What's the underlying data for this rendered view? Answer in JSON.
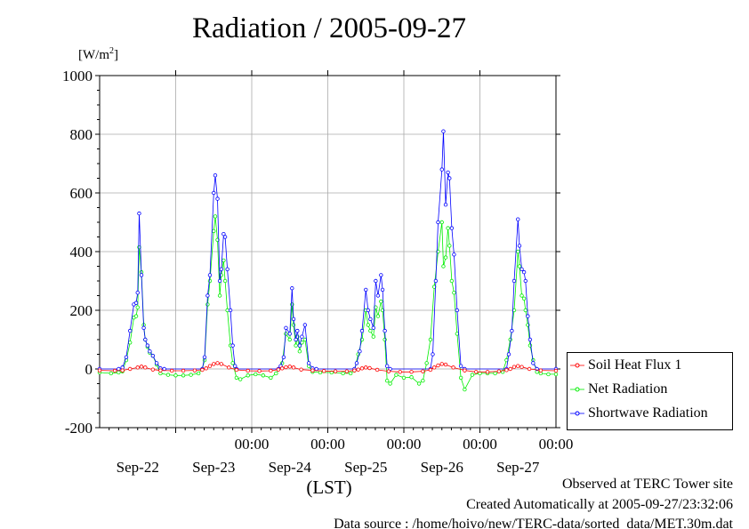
{
  "header": {
    "title": "Radiation / 2005-09-27"
  },
  "y_unit": {
    "base": "[W/m",
    "sup": "2",
    "close": "]"
  },
  "x_axis_label": "(LST)",
  "footer": {
    "line1": "Observed at TERC Tower site",
    "line2": "Created Automatically at 2005-09-27/23:32:06",
    "line3": "Data source : /home/hoivo/new/TERC-data/sorted_data/MET.30m.dat"
  },
  "colors": {
    "soil": "#ff0000",
    "net": "#00ee00",
    "shortwave": "#0000ff",
    "grid": "#aaaaaa"
  },
  "chart_data": {
    "type": "line",
    "title": "Radiation / 2005-09-27",
    "ylabel": "[W/m2]",
    "xlabel": "(LST)",
    "ylim": [
      -200,
      1000
    ],
    "xlim": [
      -0.5,
      5.5
    ],
    "grid": true,
    "legend_position": "right",
    "y_ticks": [
      "-200",
      "0",
      "200",
      "400",
      "600",
      "800",
      "1000"
    ],
    "x_ticks": [
      {
        "x": 0,
        "time": "",
        "date": "Sep-22"
      },
      {
        "x": 1,
        "time": "00:00",
        "date": "Sep-23"
      },
      {
        "x": 2,
        "time": "00:00",
        "date": "Sep-24"
      },
      {
        "x": 3,
        "time": "00:00",
        "date": "Sep-25"
      },
      {
        "x": 4,
        "time": "00:00",
        "date": "Sep-26"
      },
      {
        "x": 5,
        "time": "00:00",
        "date": "Sep-27"
      }
    ],
    "series": [
      {
        "name": "Soil Heat Flux 1",
        "points": [
          [
            -0.5,
            -5
          ],
          [
            -0.3,
            -6
          ],
          [
            -0.2,
            -5
          ],
          [
            -0.1,
            0
          ],
          [
            0.0,
            5
          ],
          [
            0.05,
            8
          ],
          [
            0.1,
            5
          ],
          [
            0.2,
            -2
          ],
          [
            0.3,
            -5
          ],
          [
            0.45,
            -6
          ],
          [
            0.6,
            -6
          ],
          [
            0.75,
            -5
          ],
          [
            0.85,
            -3
          ],
          [
            0.9,
            2
          ],
          [
            0.95,
            10
          ],
          [
            1.0,
            17
          ],
          [
            1.05,
            20
          ],
          [
            1.1,
            17
          ],
          [
            1.2,
            5
          ],
          [
            1.3,
            -3
          ],
          [
            1.45,
            -6
          ],
          [
            1.6,
            -7
          ],
          [
            1.75,
            -6
          ],
          [
            1.85,
            -2
          ],
          [
            1.9,
            2
          ],
          [
            1.95,
            6
          ],
          [
            2.0,
            8
          ],
          [
            2.05,
            5
          ],
          [
            2.15,
            -2
          ],
          [
            2.3,
            -5
          ],
          [
            2.45,
            -7
          ],
          [
            2.6,
            -8
          ],
          [
            2.75,
            -8
          ],
          [
            2.85,
            -5
          ],
          [
            2.9,
            -2
          ],
          [
            2.95,
            2
          ],
          [
            3.0,
            5
          ],
          [
            3.05,
            3
          ],
          [
            3.15,
            -3
          ],
          [
            3.3,
            -8
          ],
          [
            3.45,
            -10
          ],
          [
            3.6,
            -10
          ],
          [
            3.75,
            -8
          ],
          [
            3.85,
            -3
          ],
          [
            3.9,
            5
          ],
          [
            3.95,
            12
          ],
          [
            4.0,
            17
          ],
          [
            4.05,
            15
          ],
          [
            4.15,
            5
          ],
          [
            4.3,
            -5
          ],
          [
            4.45,
            -10
          ],
          [
            4.6,
            -10
          ],
          [
            4.75,
            -8
          ],
          [
            4.85,
            -4
          ],
          [
            4.9,
            0
          ],
          [
            4.95,
            7
          ],
          [
            5.0,
            10
          ],
          [
            5.05,
            7
          ],
          [
            5.15,
            0
          ],
          [
            5.3,
            -5
          ],
          [
            5.5,
            -6
          ]
        ]
      },
      {
        "name": "Net Radiation",
        "points": [
          [
            -0.5,
            -12
          ],
          [
            -0.35,
            -15
          ],
          [
            -0.25,
            -12
          ],
          [
            -0.2,
            -8
          ],
          [
            -0.15,
            30
          ],
          [
            -0.1,
            90
          ],
          [
            -0.05,
            175
          ],
          [
            -0.02,
            180
          ],
          [
            0.0,
            210
          ],
          [
            0.02,
            415
          ],
          [
            0.05,
            330
          ],
          [
            0.08,
            150
          ],
          [
            0.1,
            100
          ],
          [
            0.13,
            75
          ],
          [
            0.16,
            55
          ],
          [
            0.2,
            45
          ],
          [
            0.25,
            15
          ],
          [
            0.3,
            -15
          ],
          [
            0.4,
            -20
          ],
          [
            0.5,
            -22
          ],
          [
            0.6,
            -22
          ],
          [
            0.7,
            -20
          ],
          [
            0.8,
            -15
          ],
          [
            0.85,
            0
          ],
          [
            0.88,
            30
          ],
          [
            0.92,
            220
          ],
          [
            0.95,
            300
          ],
          [
            1.0,
            470
          ],
          [
            1.02,
            520
          ],
          [
            1.05,
            440
          ],
          [
            1.08,
            250
          ],
          [
            1.1,
            320
          ],
          [
            1.13,
            370
          ],
          [
            1.15,
            300
          ],
          [
            1.18,
            200
          ],
          [
            1.22,
            80
          ],
          [
            1.25,
            20
          ],
          [
            1.3,
            -30
          ],
          [
            1.35,
            -35
          ],
          [
            1.45,
            -22
          ],
          [
            1.55,
            -18
          ],
          [
            1.65,
            -22
          ],
          [
            1.75,
            -30
          ],
          [
            1.82,
            -15
          ],
          [
            1.9,
            20
          ],
          [
            1.95,
            120
          ],
          [
            2.0,
            100
          ],
          [
            2.03,
            220
          ],
          [
            2.05,
            150
          ],
          [
            2.08,
            80
          ],
          [
            2.1,
            110
          ],
          [
            2.13,
            60
          ],
          [
            2.16,
            90
          ],
          [
            2.2,
            100
          ],
          [
            2.25,
            10
          ],
          [
            2.3,
            -10
          ],
          [
            2.4,
            -12
          ],
          [
            2.55,
            -12
          ],
          [
            2.7,
            -15
          ],
          [
            2.8,
            -15
          ],
          [
            2.85,
            -5
          ],
          [
            2.9,
            50
          ],
          [
            2.95,
            100
          ],
          [
            3.0,
            200
          ],
          [
            3.03,
            150
          ],
          [
            3.06,
            130
          ],
          [
            3.1,
            110
          ],
          [
            3.13,
            210
          ],
          [
            3.16,
            180
          ],
          [
            3.2,
            230
          ],
          [
            3.22,
            200
          ],
          [
            3.25,
            100
          ],
          [
            3.28,
            -40
          ],
          [
            3.32,
            -50
          ],
          [
            3.4,
            -20
          ],
          [
            3.5,
            -30
          ],
          [
            3.6,
            -28
          ],
          [
            3.7,
            -50
          ],
          [
            3.75,
            -40
          ],
          [
            3.8,
            20
          ],
          [
            3.85,
            100
          ],
          [
            3.9,
            280
          ],
          [
            3.95,
            400
          ],
          [
            4.0,
            500
          ],
          [
            4.02,
            350
          ],
          [
            4.05,
            380
          ],
          [
            4.08,
            480
          ],
          [
            4.1,
            420
          ],
          [
            4.13,
            300
          ],
          [
            4.16,
            260
          ],
          [
            4.2,
            120
          ],
          [
            4.25,
            -30
          ],
          [
            4.3,
            -70
          ],
          [
            4.4,
            -20
          ],
          [
            4.5,
            -15
          ],
          [
            4.6,
            -15
          ],
          [
            4.7,
            -15
          ],
          [
            4.8,
            -10
          ],
          [
            4.85,
            30
          ],
          [
            4.9,
            100
          ],
          [
            4.95,
            200
          ],
          [
            5.0,
            400
          ],
          [
            5.02,
            350
          ],
          [
            5.05,
            250
          ],
          [
            5.08,
            240
          ],
          [
            5.1,
            200
          ],
          [
            5.13,
            150
          ],
          [
            5.16,
            80
          ],
          [
            5.2,
            30
          ],
          [
            5.25,
            -10
          ],
          [
            5.3,
            -15
          ],
          [
            5.4,
            -18
          ],
          [
            5.5,
            -18
          ]
        ]
      },
      {
        "name": "Shortwave Radiation",
        "points": [
          [
            -0.5,
            0
          ],
          [
            -0.25,
            0
          ],
          [
            -0.2,
            5
          ],
          [
            -0.15,
            40
          ],
          [
            -0.1,
            130
          ],
          [
            -0.05,
            220
          ],
          [
            -0.02,
            225
          ],
          [
            0.0,
            260
          ],
          [
            0.02,
            530
          ],
          [
            0.05,
            320
          ],
          [
            0.08,
            140
          ],
          [
            0.1,
            100
          ],
          [
            0.13,
            80
          ],
          [
            0.16,
            60
          ],
          [
            0.2,
            45
          ],
          [
            0.25,
            20
          ],
          [
            0.3,
            2
          ],
          [
            0.35,
            0
          ],
          [
            0.85,
            0
          ],
          [
            0.88,
            40
          ],
          [
            0.92,
            250
          ],
          [
            0.95,
            320
          ],
          [
            1.0,
            600
          ],
          [
            1.02,
            660
          ],
          [
            1.05,
            580
          ],
          [
            1.08,
            300
          ],
          [
            1.1,
            340
          ],
          [
            1.13,
            460
          ],
          [
            1.15,
            450
          ],
          [
            1.18,
            340
          ],
          [
            1.22,
            200
          ],
          [
            1.25,
            80
          ],
          [
            1.28,
            10
          ],
          [
            1.3,
            0
          ],
          [
            1.85,
            0
          ],
          [
            1.88,
            10
          ],
          [
            1.92,
            40
          ],
          [
            1.95,
            140
          ],
          [
            2.0,
            120
          ],
          [
            2.03,
            275
          ],
          [
            2.05,
            170
          ],
          [
            2.08,
            100
          ],
          [
            2.1,
            130
          ],
          [
            2.13,
            80
          ],
          [
            2.16,
            110
          ],
          [
            2.2,
            150
          ],
          [
            2.25,
            20
          ],
          [
            2.3,
            2
          ],
          [
            2.35,
            0
          ],
          [
            2.85,
            0
          ],
          [
            2.88,
            20
          ],
          [
            2.92,
            60
          ],
          [
            2.95,
            130
          ],
          [
            3.0,
            270
          ],
          [
            3.03,
            200
          ],
          [
            3.06,
            170
          ],
          [
            3.1,
            140
          ],
          [
            3.13,
            300
          ],
          [
            3.16,
            250
          ],
          [
            3.2,
            320
          ],
          [
            3.22,
            270
          ],
          [
            3.25,
            130
          ],
          [
            3.28,
            10
          ],
          [
            3.32,
            0
          ],
          [
            3.85,
            0
          ],
          [
            3.88,
            50
          ],
          [
            3.92,
            300
          ],
          [
            3.95,
            500
          ],
          [
            4.0,
            680
          ],
          [
            4.02,
            810
          ],
          [
            4.05,
            560
          ],
          [
            4.08,
            670
          ],
          [
            4.1,
            650
          ],
          [
            4.13,
            480
          ],
          [
            4.16,
            390
          ],
          [
            4.2,
            200
          ],
          [
            4.25,
            10
          ],
          [
            4.3,
            0
          ],
          [
            4.85,
            0
          ],
          [
            4.88,
            50
          ],
          [
            4.92,
            130
          ],
          [
            4.95,
            300
          ],
          [
            5.0,
            510
          ],
          [
            5.02,
            420
          ],
          [
            5.05,
            340
          ],
          [
            5.08,
            330
          ],
          [
            5.1,
            300
          ],
          [
            5.13,
            180
          ],
          [
            5.16,
            100
          ],
          [
            5.2,
            20
          ],
          [
            5.25,
            0
          ],
          [
            5.5,
            0
          ]
        ]
      }
    ]
  }
}
